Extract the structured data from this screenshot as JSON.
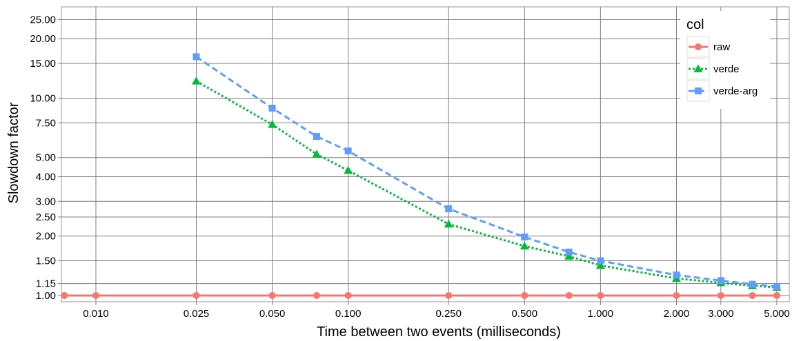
{
  "chart_data": {
    "type": "line",
    "title": "",
    "xlabel": "Time between two events (milliseconds)",
    "ylabel": "Slowdown factor",
    "x_scale": "log",
    "y_scale": "log",
    "xlim": [
      0.0073,
      5.6
    ],
    "ylim": [
      0.93,
      29
    ],
    "x_ticks": [
      0.01,
      0.025,
      0.05,
      0.1,
      0.25,
      0.5,
      1,
      2,
      3,
      5
    ],
    "x_tick_labels": [
      "0.010",
      "0.025",
      "0.050",
      "0.100",
      "0.250",
      "0.500",
      "1.000",
      "2.000",
      "3.000",
      "5.000"
    ],
    "y_ticks": [
      1,
      1.15,
      1.5,
      2,
      2.5,
      3,
      4,
      5,
      7.5,
      10,
      15,
      20,
      25
    ],
    "y_tick_labels": [
      "1.00",
      "1.15",
      "1.50",
      "2.00",
      "2.50",
      "3.00",
      "4.00",
      "5.00",
      "7.50",
      "10.00",
      "15.00",
      "20.00",
      "25.00"
    ],
    "grid": true,
    "legend": {
      "title": "col",
      "placement": "top-right"
    },
    "series": [
      {
        "name": "raw",
        "color": "#f8766d",
        "marker": "circle",
        "dash": "solid",
        "x": [
          0.0075,
          0.01,
          0.025,
          0.05,
          0.075,
          0.1,
          0.25,
          0.5,
          0.75,
          1,
          2,
          3,
          4,
          5
        ],
        "values": [
          1,
          1,
          1,
          1,
          1,
          1,
          1,
          1,
          1,
          1,
          1,
          1,
          1,
          1
        ]
      },
      {
        "name": "verde",
        "color": "#00ba38",
        "marker": "triangle",
        "dash": "dotted",
        "x": [
          0.025,
          0.05,
          0.075,
          0.1,
          0.25,
          0.5,
          0.75,
          1,
          2,
          3,
          4,
          5
        ],
        "values": [
          12.2,
          7.35,
          5.2,
          4.3,
          2.3,
          1.78,
          1.58,
          1.42,
          1.22,
          1.16,
          1.12,
          1.1
        ]
      },
      {
        "name": "verde-arg",
        "color": "#619cff",
        "marker": "square",
        "dash": "dashed",
        "x": [
          0.025,
          0.05,
          0.075,
          0.1,
          0.25,
          0.5,
          0.75,
          1,
          2,
          3,
          4,
          5
        ],
        "values": [
          16.2,
          8.9,
          6.4,
          5.4,
          2.75,
          1.98,
          1.66,
          1.5,
          1.27,
          1.19,
          1.14,
          1.11
        ]
      }
    ]
  }
}
